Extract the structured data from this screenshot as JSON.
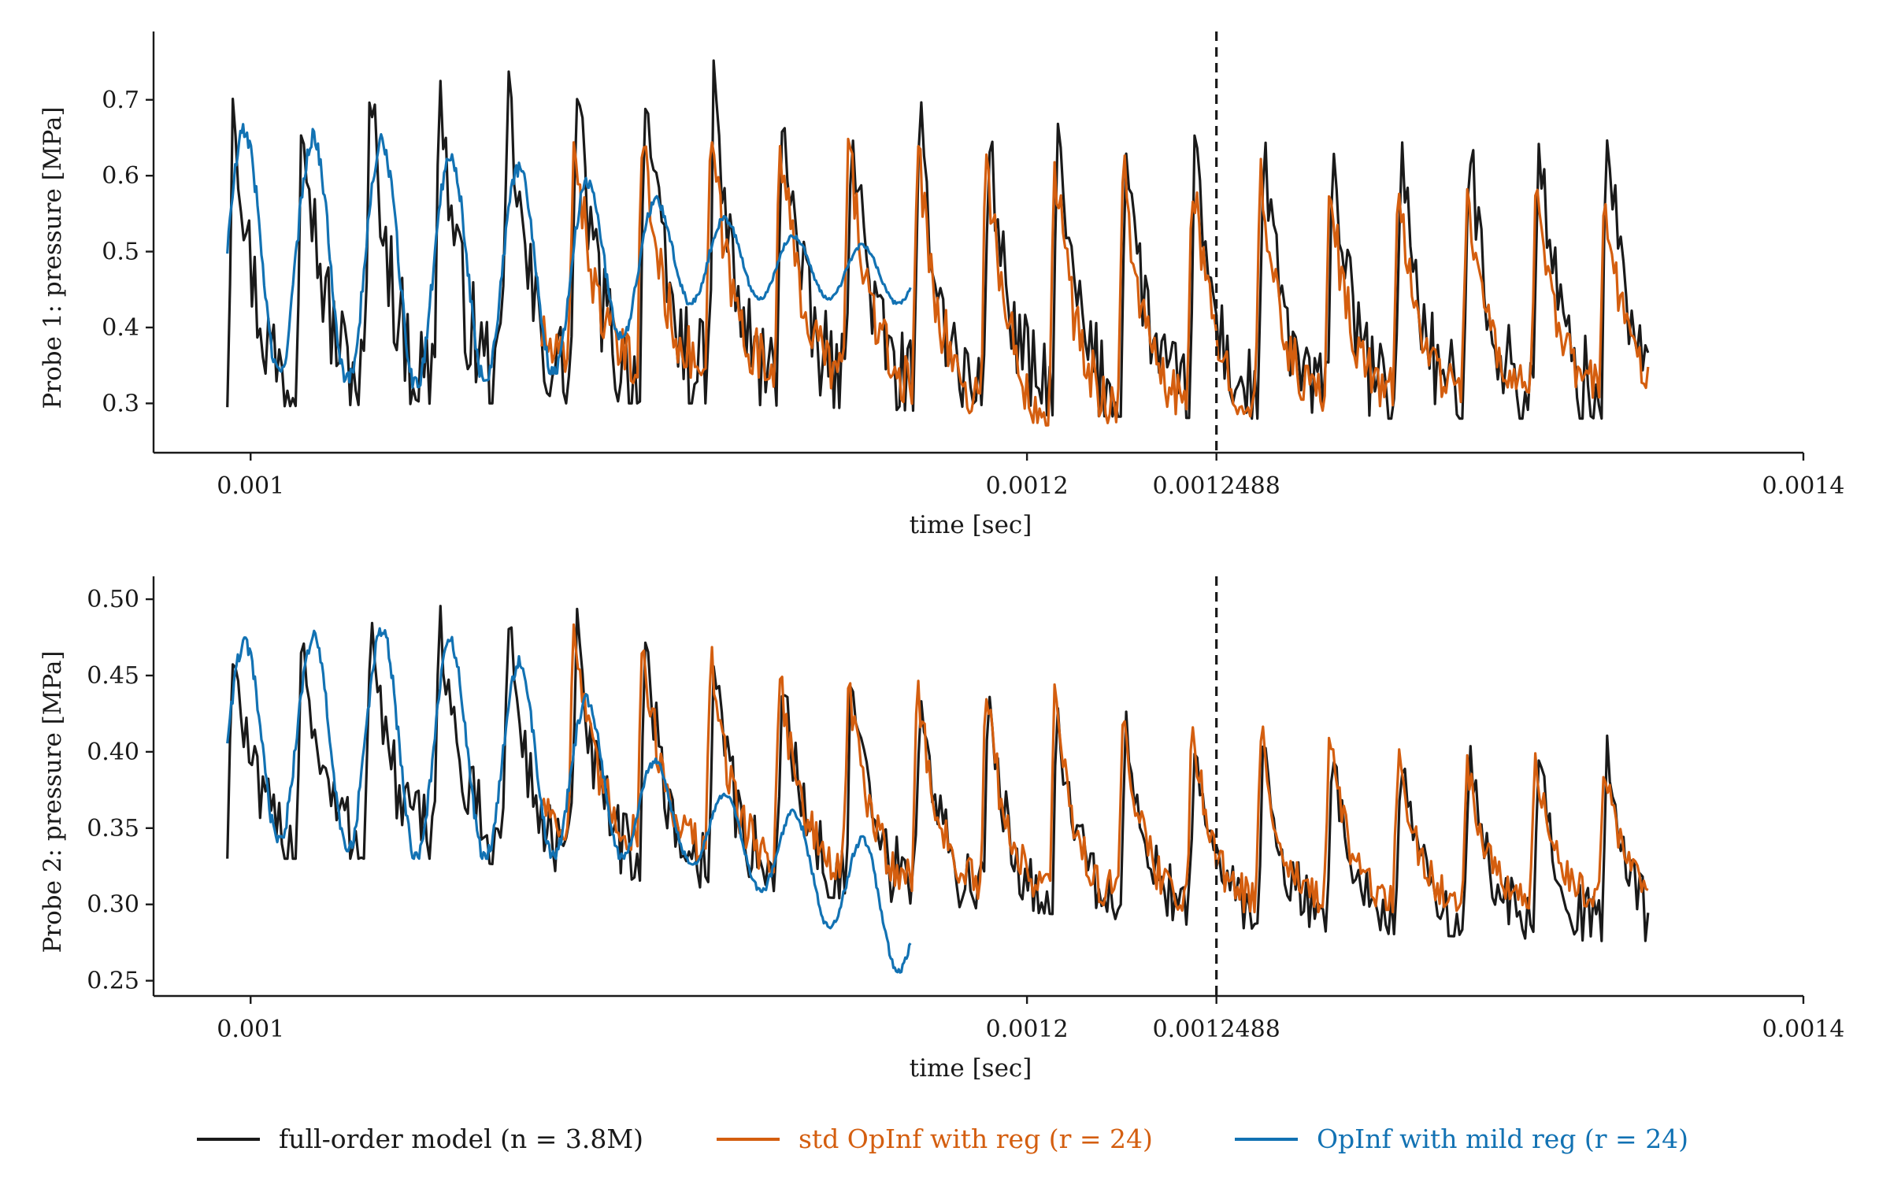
{
  "chart_data": [
    {
      "type": "line",
      "ylabel": "Probe 1: pressure [MPa]",
      "xlabel": "time [sec]",
      "xlim": [
        0.000975,
        0.0014
      ],
      "ylim": [
        0.235,
        0.79
      ],
      "xticks": [
        0.001,
        0.0012,
        0.0012488,
        0.0014
      ],
      "xtick_labels": [
        "0.001",
        "0.0012",
        "0.0012488",
        "0.0014"
      ],
      "yticks": [
        0.3,
        0.4,
        0.5,
        0.6,
        0.7
      ],
      "ytick_labels": [
        "0.3",
        "0.4",
        "0.5",
        "0.6",
        "0.7"
      ],
      "vline": 0.0012488,
      "period": 1.77e-05,
      "series": [
        {
          "name": "full-order model (n = 3.8M)",
          "color": "#1a1a1a",
          "x_range": [
            0.000994,
            0.00136
          ],
          "envelope": {
            "x": [
              0.000994,
              0.00105,
              0.00112,
              0.0012,
              0.00125,
              0.0013,
              0.00136
            ],
            "min": [
              0.295,
              0.3,
              0.3,
              0.285,
              0.28,
              0.28,
              0.28
            ],
            "max": [
              0.725,
              0.74,
              0.73,
              0.66,
              0.64,
              0.65,
              0.68
            ]
          }
        },
        {
          "name": "std OpInf with reg (r = 24)",
          "color": "#d45e0f",
          "x_range": [
            0.001075,
            0.00136
          ],
          "envelope": {
            "x": [
              0.001075,
              0.00115,
              0.0012,
              0.00125,
              0.0013,
              0.00136
            ],
            "min": [
              0.33,
              0.32,
              0.27,
              0.28,
              0.3,
              0.31
            ],
            "max": [
              0.67,
              0.66,
              0.64,
              0.61,
              0.59,
              0.57
            ]
          }
        },
        {
          "name": "OpInf with mild reg (r = 24)",
          "color": "#1272b3",
          "x_range": [
            0.000994,
            0.00117
          ],
          "envelope": {
            "x": [
              0.000994,
              0.00104,
              0.00108,
              0.00111,
              0.00114,
              0.00117
            ],
            "min": [
              0.345,
              0.32,
              0.34,
              0.43,
              0.44,
              0.43
            ],
            "max": [
              0.66,
              0.64,
              0.6,
              0.56,
              0.52,
              0.5
            ]
          }
        }
      ]
    },
    {
      "type": "line",
      "ylabel": "Probe 2: pressure [MPa]",
      "xlabel": "time [sec]",
      "xlim": [
        0.000975,
        0.0014
      ],
      "ylim": [
        0.24,
        0.515
      ],
      "xticks": [
        0.001,
        0.0012,
        0.0012488,
        0.0014
      ],
      "xtick_labels": [
        "0.001",
        "0.0012",
        "0.0012488",
        "0.0014"
      ],
      "yticks": [
        0.25,
        0.3,
        0.35,
        0.4,
        0.45,
        0.5
      ],
      "ytick_labels": [
        "0.25",
        "0.30",
        "0.35",
        "0.40",
        "0.45",
        "0.50"
      ],
      "vline": 0.0012488,
      "period": 1.77e-05,
      "series": [
        {
          "name": "full-order model (n = 3.8M)",
          "color": "#1a1a1a",
          "x_range": [
            0.000994,
            0.00136
          ],
          "envelope": {
            "x": [
              0.000994,
              0.00105,
              0.00112,
              0.0012,
              0.00125,
              0.0013,
              0.00136
            ],
            "min": [
              0.33,
              0.33,
              0.31,
              0.295,
              0.285,
              0.28,
              0.275
            ],
            "max": [
              0.47,
              0.5,
              0.47,
              0.43,
              0.41,
              0.4,
              0.405
            ]
          }
        },
        {
          "name": "std OpInf with reg (r = 24)",
          "color": "#d45e0f",
          "x_range": [
            0.001075,
            0.00136
          ],
          "envelope": {
            "x": [
              0.001075,
              0.00115,
              0.0012,
              0.00125,
              0.0013,
              0.00136
            ],
            "min": [
              0.345,
              0.315,
              0.3,
              0.295,
              0.295,
              0.3
            ],
            "max": [
              0.49,
              0.45,
              0.44,
              0.42,
              0.4,
              0.39
            ]
          }
        },
        {
          "name": "OpInf with mild reg (r = 24)",
          "color": "#1272b3",
          "x_range": [
            0.000994,
            0.00117
          ],
          "envelope": {
            "x": [
              0.000994,
              0.00104,
              0.00108,
              0.00111,
              0.00114,
              0.00117
            ],
            "min": [
              0.345,
              0.33,
              0.33,
              0.33,
              0.3,
              0.25
            ],
            "max": [
              0.47,
              0.48,
              0.45,
              0.38,
              0.36,
              0.33
            ]
          }
        }
      ]
    }
  ],
  "legend": {
    "position": "bottom-center",
    "items": [
      {
        "label": "full-order model (n = 3.8M)",
        "color": "#1a1a1a"
      },
      {
        "label": "std OpInf with reg (r = 24)",
        "color": "#d45e0f"
      },
      {
        "label": "OpInf with mild reg (r = 24)",
        "color": "#1272b3"
      }
    ]
  }
}
